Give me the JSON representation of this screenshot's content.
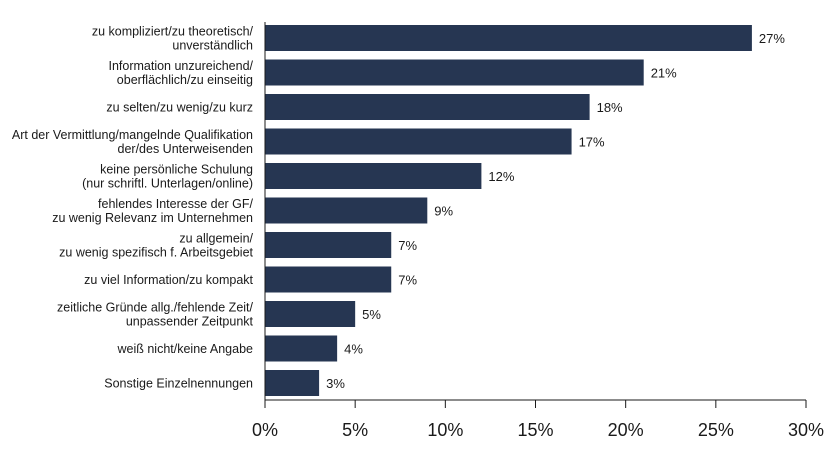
{
  "chart_data": {
    "type": "bar",
    "orientation": "horizontal",
    "title": "",
    "xlabel": "",
    "ylabel": "",
    "xlim": [
      0,
      30
    ],
    "ticks": [
      0,
      5,
      10,
      15,
      20,
      25,
      30
    ],
    "tick_labels": [
      "0%",
      "5%",
      "10%",
      "15%",
      "20%",
      "25%",
      "30%"
    ],
    "grid": false,
    "bar_color": "#263652",
    "categories": [
      [
        "zu kompliziert/zu theoretisch/",
        "unverständlich"
      ],
      [
        "Information unzureichend/",
        "oberflächlich/zu einseitig"
      ],
      [
        "zu selten/zu wenig/zu kurz"
      ],
      [
        "Art der Vermittlung/mangelnde Qualifikation",
        "der/des Unterweisenden"
      ],
      [
        "keine persönliche Schulung",
        "(nur schriftl. Unterlagen/online)"
      ],
      [
        "fehlendes Interesse der GF/",
        "zu wenig Relevanz im Unternehmen"
      ],
      [
        "zu allgemein/",
        "zu wenig spezifisch f. Arbeitsgebiet"
      ],
      [
        "zu viel Information/zu kompakt"
      ],
      [
        "zeitliche Gründe allg./fehlende Zeit/",
        "unpassender Zeitpunkt"
      ],
      [
        "weiß nicht/keine Angabe"
      ],
      [
        "Sonstige Einzelnennungen"
      ]
    ],
    "values": [
      27,
      21,
      18,
      17,
      12,
      9,
      7,
      7,
      5,
      4,
      3
    ],
    "value_labels": [
      "27%",
      "21%",
      "18%",
      "17%",
      "12%",
      "9%",
      "7%",
      "7%",
      "5%",
      "4%",
      "3%"
    ]
  }
}
